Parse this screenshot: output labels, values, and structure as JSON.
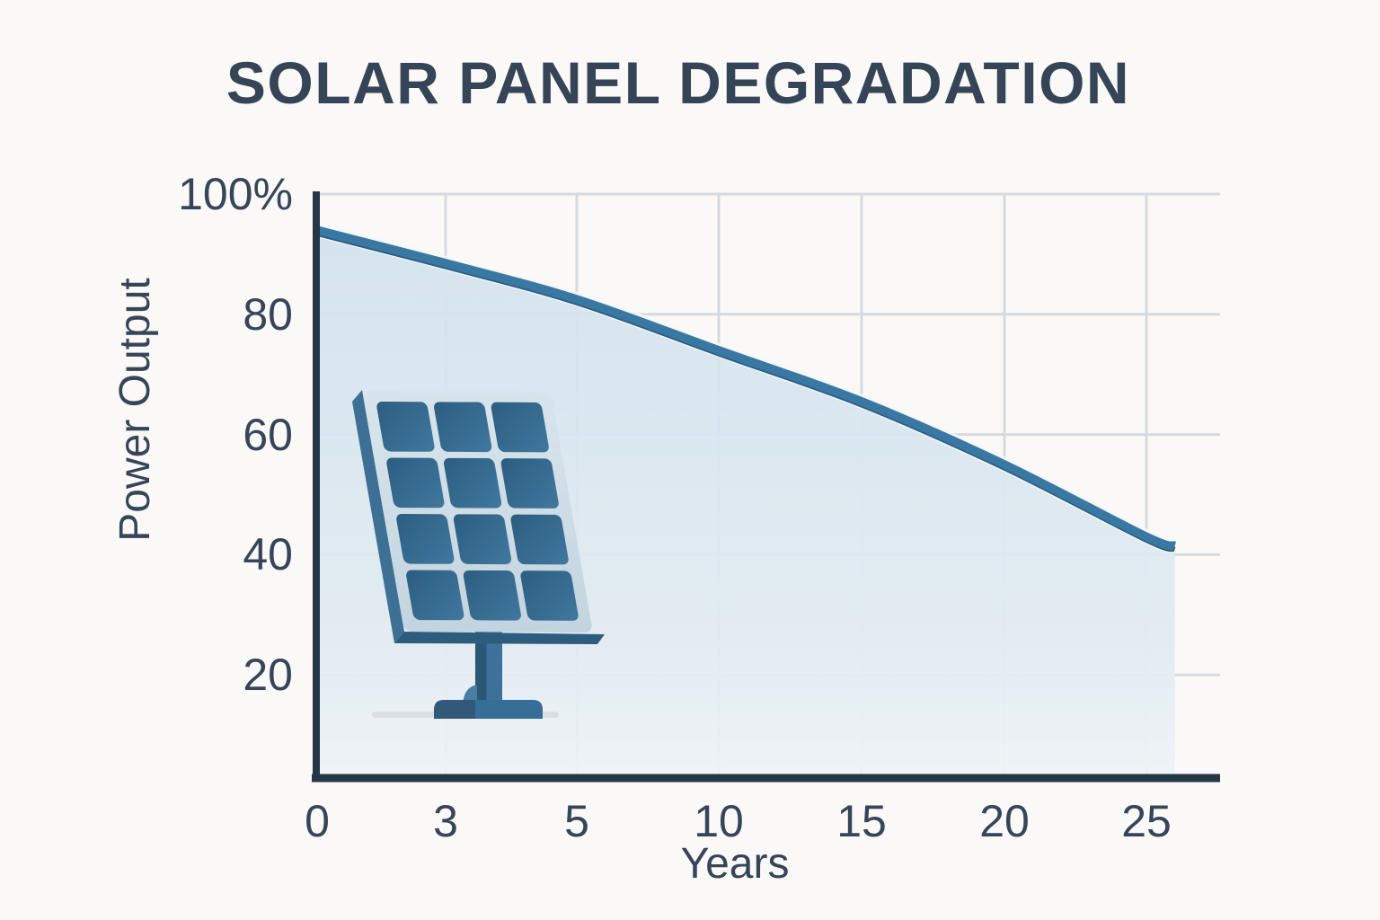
{
  "title": "SOLAR PANEL DEGRADATION",
  "chart_data": {
    "type": "area",
    "title": "SOLAR PANEL DEGRADATION",
    "xlabel": "Years",
    "ylabel": "Power Output",
    "y_unit": "%",
    "x_ticks": [
      0,
      3,
      5,
      10,
      15,
      20,
      25
    ],
    "x_tick_labels": [
      "0",
      "3",
      "5",
      "10",
      "15",
      "20",
      "25"
    ],
    "y_ticks": [
      100,
      80,
      60,
      40,
      20
    ],
    "y_tick_labels": [
      "100%",
      "80",
      "60",
      "40",
      "20"
    ],
    "ylim": [
      0,
      100
    ],
    "grid": true,
    "legend": "none",
    "points": [
      {
        "year": 0,
        "output_pct": 94
      },
      {
        "year": 3,
        "output_pct": 88.5
      },
      {
        "year": 5,
        "output_pct": 82.5
      },
      {
        "year": 10,
        "output_pct": 74
      },
      {
        "year": 15,
        "output_pct": 65.5
      },
      {
        "year": 20,
        "output_pct": 55
      },
      {
        "year": 25,
        "output_pct": 43
      },
      {
        "year": 26,
        "output_pct": 41.5
      }
    ],
    "annotations": [
      "solar panel illustration inside plot area"
    ]
  },
  "colors": {
    "background": "#faf9f7",
    "line": "#3a78a4",
    "line_shadow": "#2b5e82",
    "halo": "#f3f7f9",
    "fill_top": "#d4e3ee",
    "fill_mid": "#e0eaf1",
    "fill_bottom": "#eef3f6",
    "grid": "#d6dade",
    "axis": "#253745",
    "text": "#36455a",
    "panel_cell_dark": "#2b5d80",
    "panel_cell_light": "#41789f",
    "panel_frame_light": "#d9e5ec",
    "panel_frame_dark": "#c2d4df"
  }
}
